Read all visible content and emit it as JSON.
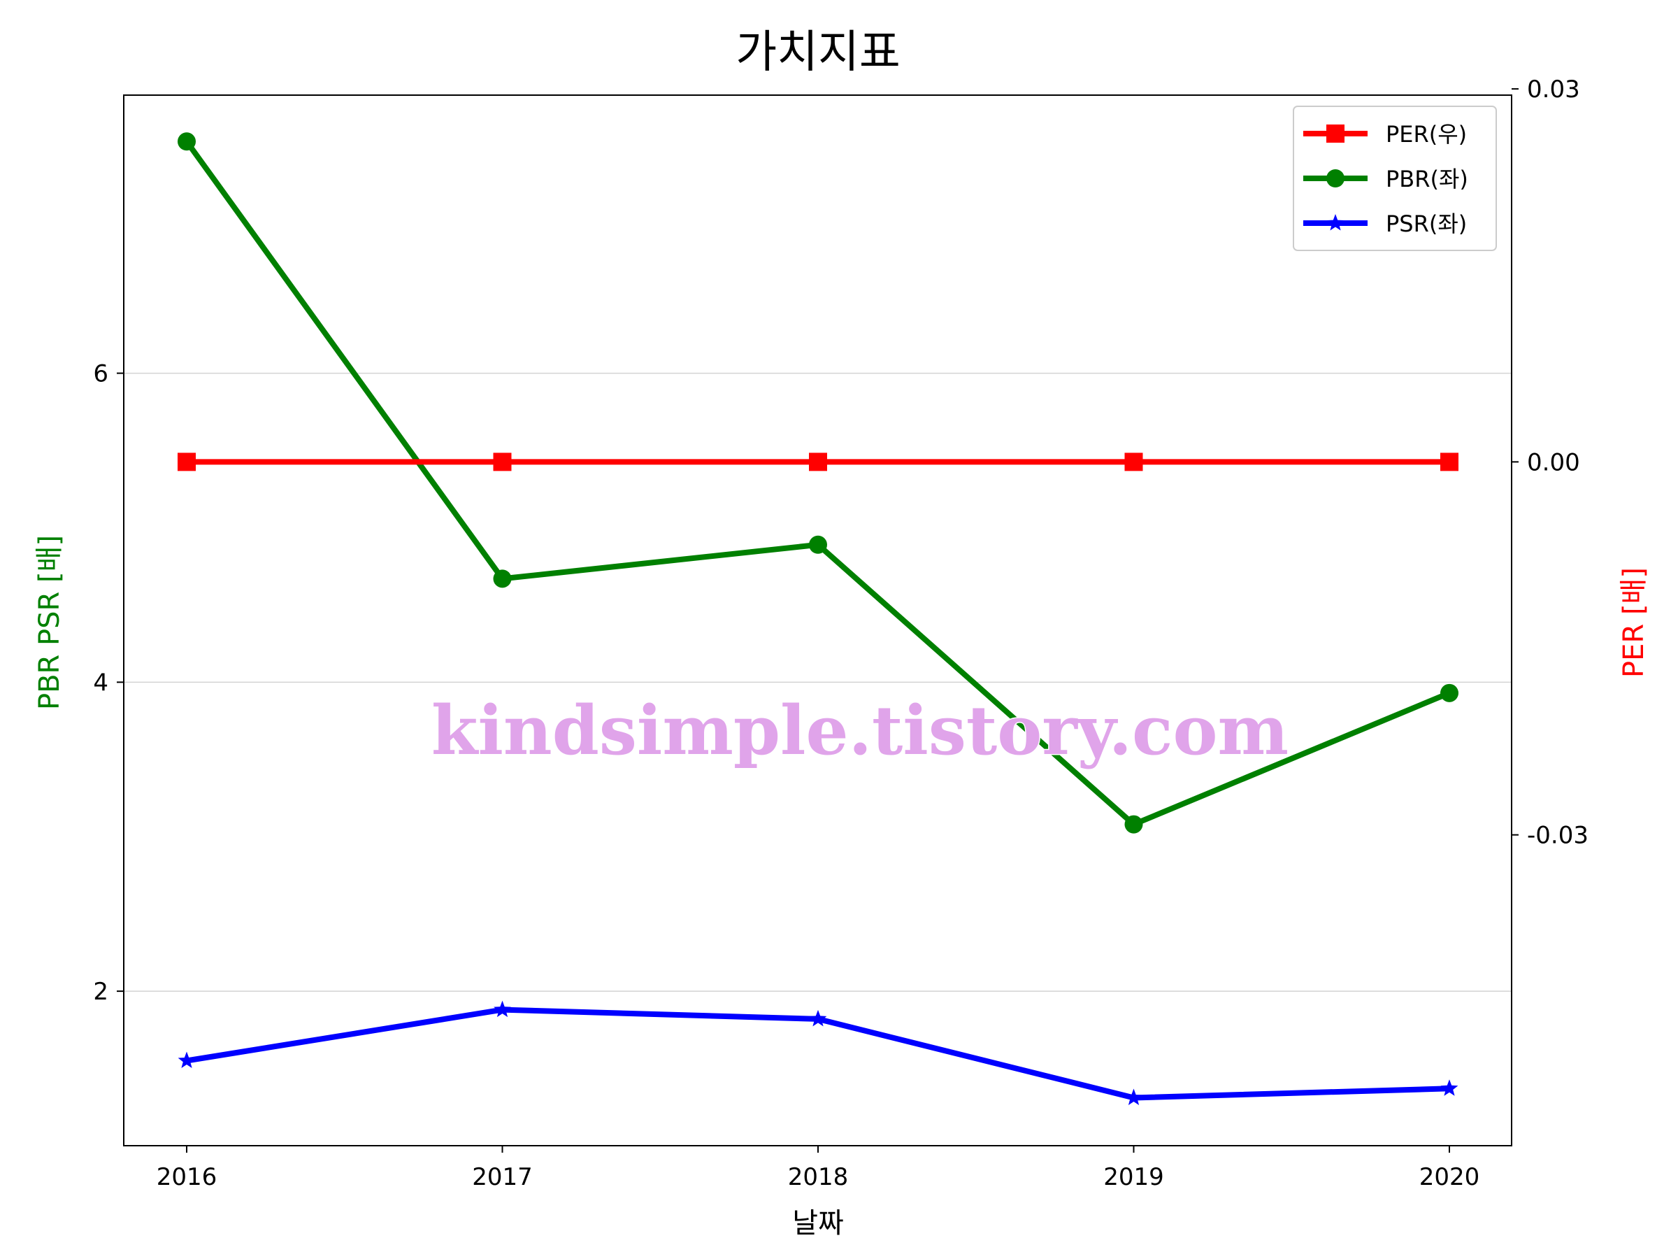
{
  "chart_data": {
    "type": "line",
    "title": "가치지표",
    "xlabel": "날짜",
    "ylabel_left": "PBR PSR [배]",
    "ylabel_right": "PER [배]",
    "categories": [
      "2016",
      "2017",
      "2018",
      "2019",
      "2020"
    ],
    "left_axis": {
      "ylim": [
        1.0,
        7.8
      ],
      "ticks": [
        "2",
        "4",
        "6"
      ],
      "tick_values": [
        2,
        4,
        6
      ]
    },
    "right_axis": {
      "ylim": [
        -0.055,
        0.0295
      ],
      "ticks": [
        "0.03",
        "0.00",
        "-0.03"
      ],
      "tick_values": [
        0.03,
        0.0,
        -0.03
      ]
    },
    "grid": "horizontal (left axis)",
    "legend_position": "top-right",
    "series": [
      {
        "name": "PER(우)",
        "axis": "right",
        "color": "#ff0000",
        "marker": "square",
        "values": [
          0.0,
          0.0,
          0.0,
          0.0,
          0.0
        ]
      },
      {
        "name": "PBR(좌)",
        "axis": "left",
        "color": "#008000",
        "marker": "circle",
        "values": [
          7.5,
          4.67,
          4.89,
          3.08,
          3.93
        ]
      },
      {
        "name": "PSR(좌)",
        "axis": "left",
        "color": "#0000ff",
        "marker": "star",
        "values": [
          1.55,
          1.88,
          1.82,
          1.31,
          1.37
        ]
      }
    ],
    "watermark": "kindsimple.tistory.com"
  }
}
